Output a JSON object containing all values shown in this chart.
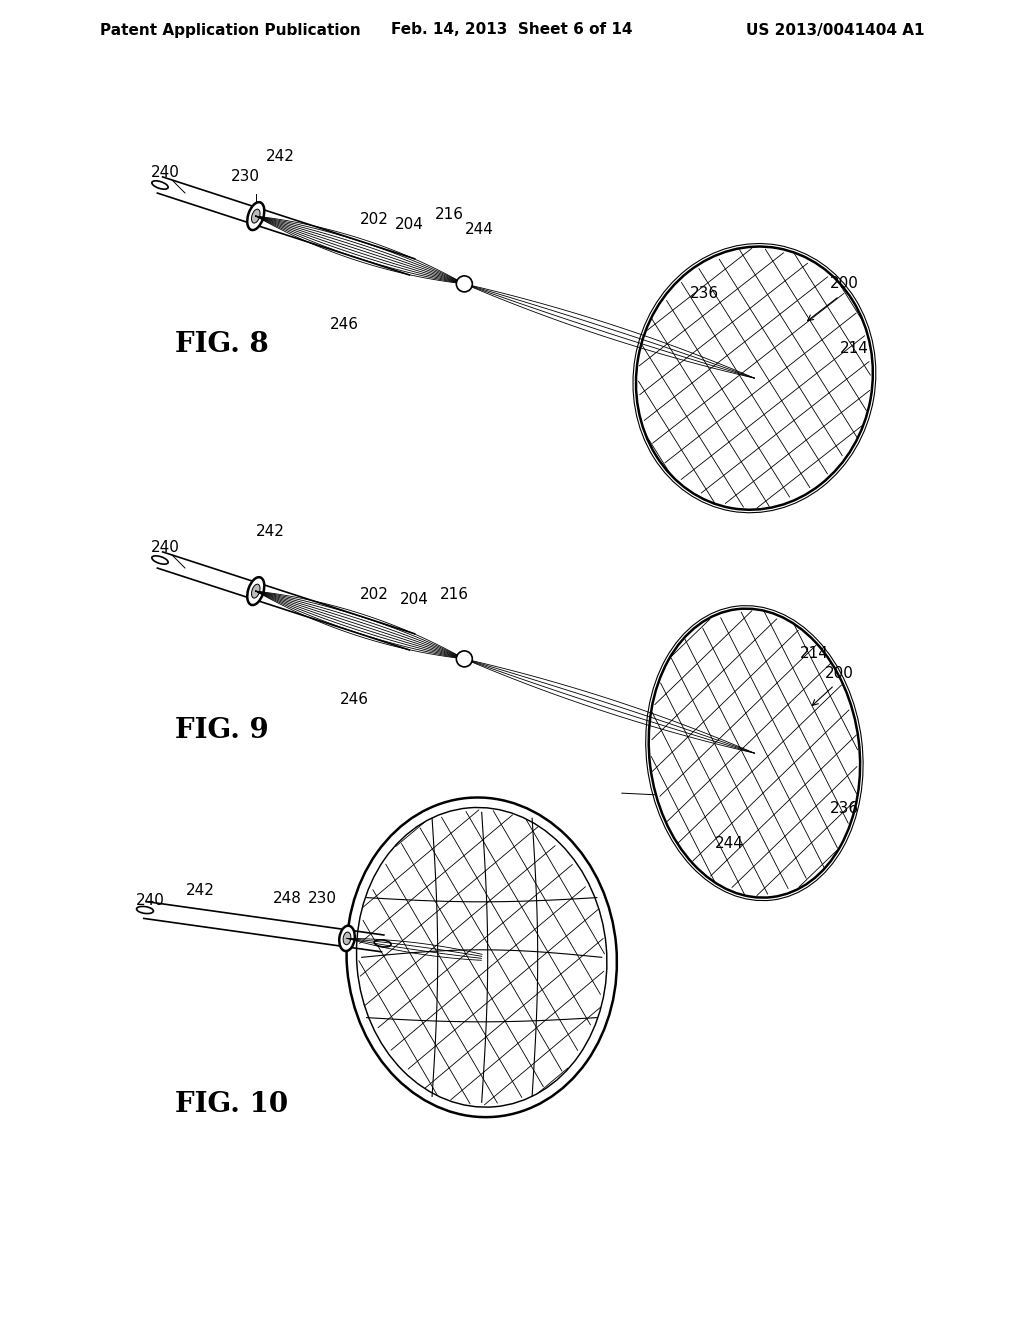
{
  "header_left": "Patent Application Publication",
  "header_center": "Feb. 14, 2013  Sheet 6 of 14",
  "header_right": "US 2013/0041404 A1",
  "bg_color": "#ffffff",
  "line_color": "#000000",
  "fig8_label": "FIG. 8",
  "fig9_label": "FIG. 9",
  "fig10_label": "FIG. 10",
  "header_fontsize": 11,
  "fig_label_fontsize": 20,
  "annotation_fontsize": 11
}
